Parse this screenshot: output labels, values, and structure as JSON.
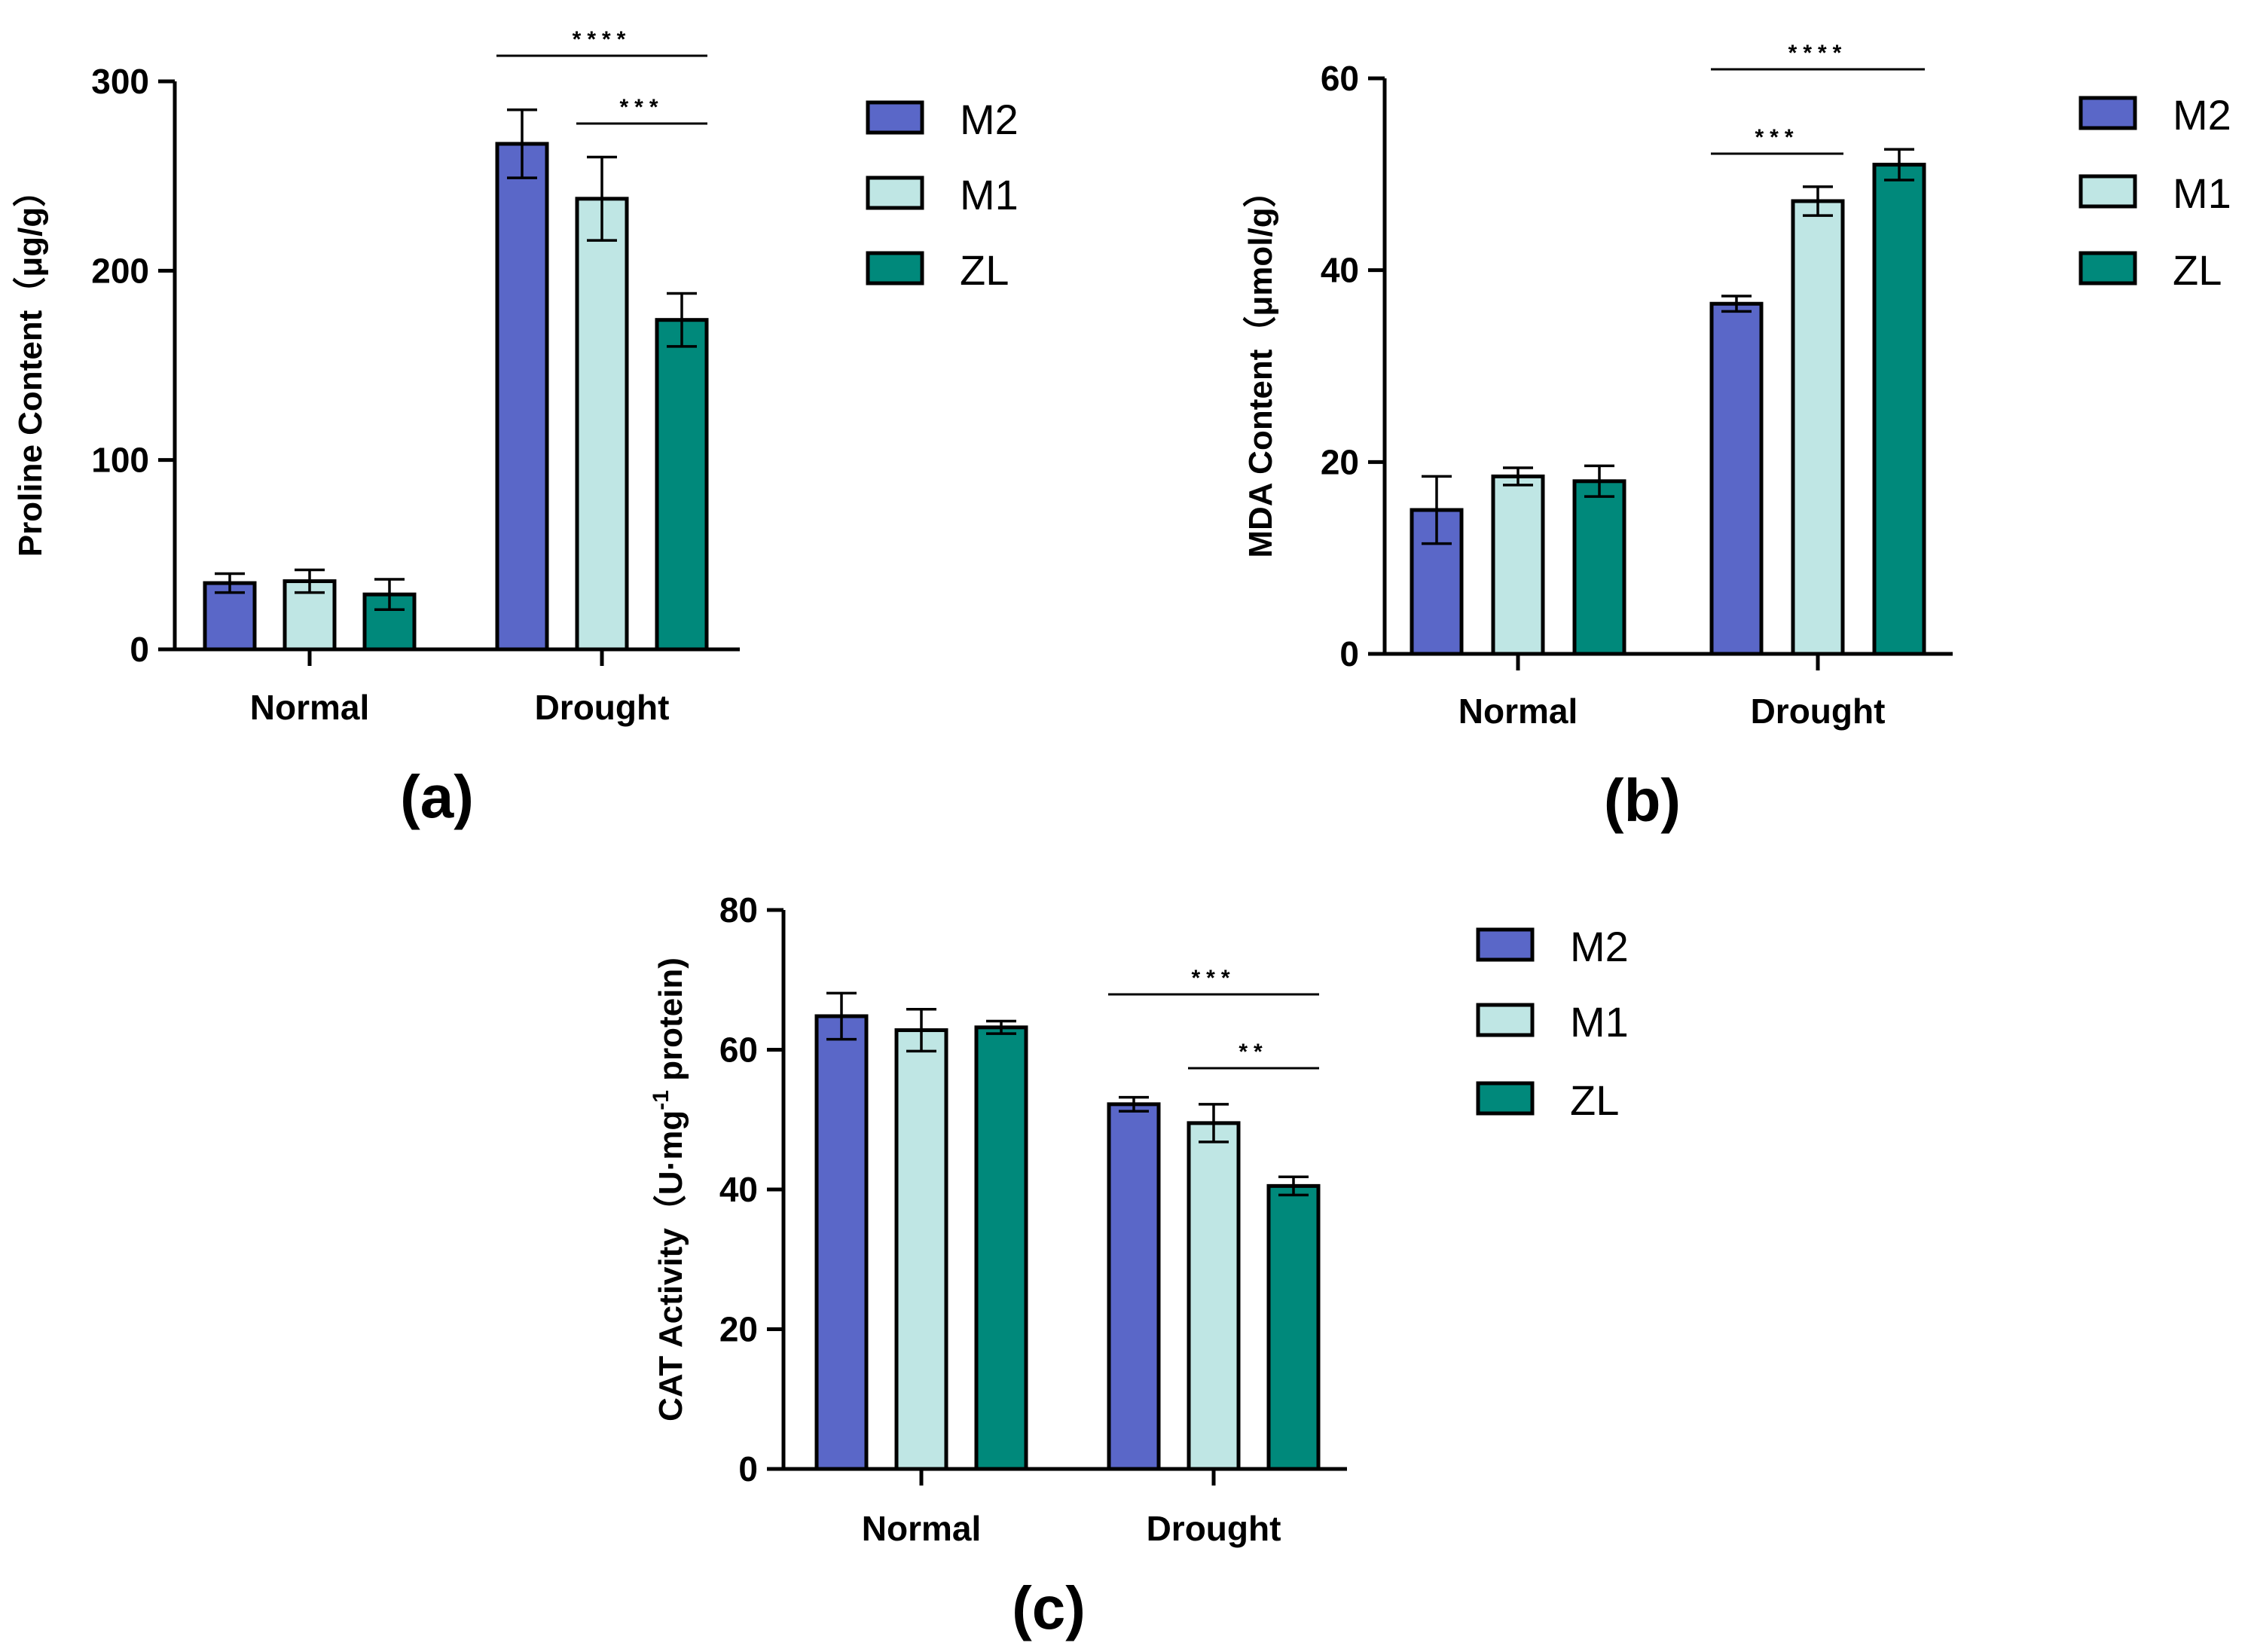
{
  "colors": {
    "M2": "#5A67C8",
    "M1": "#BFE6E4",
    "ZL": "#00897B",
    "stroke": "#000000"
  },
  "chart_data": [
    {
      "type": "bar",
      "panel": "(a)",
      "ylabel": "Proline Content（μg/g）",
      "categories": [
        "Normal",
        "Drought"
      ],
      "ylim": [
        0,
        300
      ],
      "yticks": [
        0,
        100,
        200,
        300
      ],
      "series": [
        {
          "name": "M2",
          "values": [
            35,
            267
          ],
          "errors": [
            5,
            18
          ]
        },
        {
          "name": "M1",
          "values": [
            36,
            238
          ],
          "errors": [
            6,
            22
          ]
        },
        {
          "name": "ZL",
          "values": [
            29,
            174
          ],
          "errors": [
            8,
            14
          ]
        }
      ],
      "significance": [
        {
          "group": "Drought",
          "from": "M2",
          "to": "ZL",
          "label": "****"
        },
        {
          "group": "Drought",
          "from": "M1",
          "to": "ZL",
          "label": "***"
        }
      ],
      "legend": [
        "M2",
        "M1",
        "ZL"
      ]
    },
    {
      "type": "bar",
      "panel": "(b)",
      "ylabel": "MDA Content（μmol/g）",
      "categories": [
        "Normal",
        "Drought"
      ],
      "ylim": [
        0,
        60
      ],
      "yticks": [
        0,
        20,
        40,
        60
      ],
      "series": [
        {
          "name": "M2",
          "values": [
            15,
            36.5
          ],
          "errors": [
            3.5,
            0.8
          ]
        },
        {
          "name": "M1",
          "values": [
            18.5,
            47.2
          ],
          "errors": [
            0.9,
            1.5
          ]
        },
        {
          "name": "ZL",
          "values": [
            18,
            51
          ],
          "errors": [
            1.6,
            1.6
          ]
        }
      ],
      "significance": [
        {
          "group": "Drought",
          "from": "M2",
          "to": "ZL",
          "label": "****"
        },
        {
          "group": "Drought",
          "from": "M2",
          "to": "M1",
          "label": "***"
        }
      ],
      "legend": [
        "M2",
        "M1",
        "ZL"
      ]
    },
    {
      "type": "bar",
      "panel": "(c)",
      "ylabel": "CAT Activity（U·mg",
      "ylabel_sup": "-1",
      "ylabel_tail": " protein)",
      "categories": [
        "Normal",
        "Drought"
      ],
      "ylim": [
        0,
        80
      ],
      "yticks": [
        0,
        20,
        40,
        60,
        80
      ],
      "series": [
        {
          "name": "M2",
          "values": [
            64.8,
            52.2
          ],
          "errors": [
            3.3,
            1.0
          ]
        },
        {
          "name": "M1",
          "values": [
            62.8,
            49.5
          ],
          "errors": [
            3.0,
            2.7
          ]
        },
        {
          "name": "ZL",
          "values": [
            63.2,
            40.5
          ],
          "errors": [
            0.9,
            1.3
          ]
        }
      ],
      "significance": [
        {
          "group": "Drought",
          "from": "M2",
          "to": "ZL",
          "label": "***"
        },
        {
          "group": "Drought",
          "from": "M1",
          "to": "ZL",
          "label": "**"
        }
      ],
      "legend": [
        "M2",
        "M1",
        "ZL"
      ]
    }
  ]
}
